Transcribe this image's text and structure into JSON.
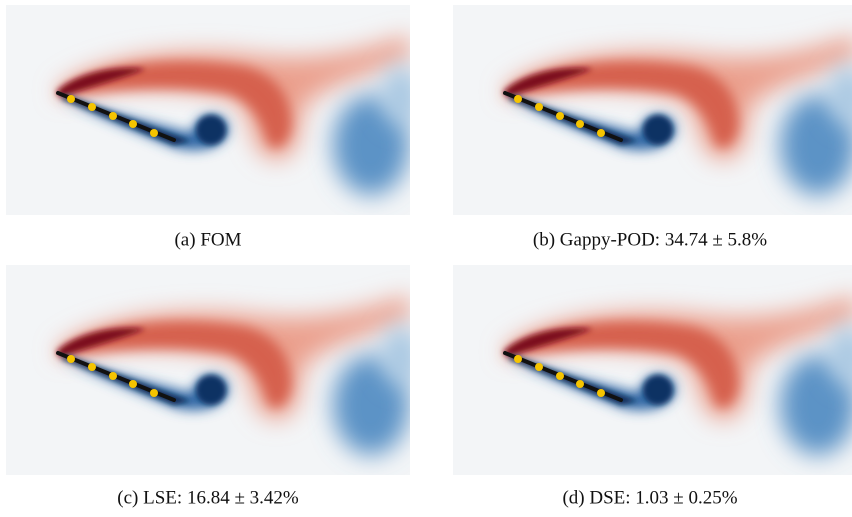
{
  "panels": [
    {
      "caption": "(a) FOM"
    },
    {
      "caption": "(b) Gappy-POD: 34.74 ± 5.8%"
    },
    {
      "caption": "(c) LSE: 16.84 ± 3.42%"
    },
    {
      "caption": "(d) DSE: 1.03 ± 0.25%"
    }
  ]
}
